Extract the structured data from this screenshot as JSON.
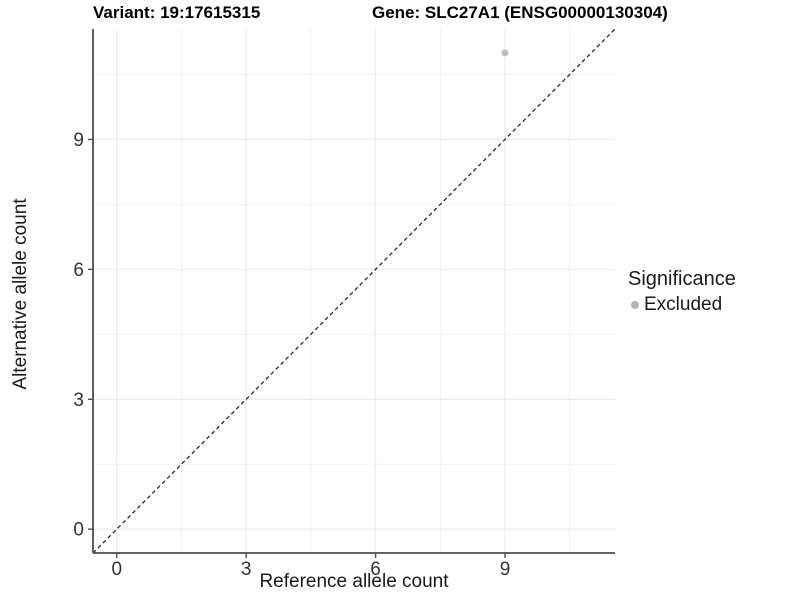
{
  "header": {
    "variant_title": "Variant: 19:17615315",
    "gene_title": "Gene: SLC27A1 (ENSG00000130304)"
  },
  "chart_data": {
    "type": "scatter",
    "title": "Variant: 19:17615315    Gene: SLC27A1 (ENSG00000130304)",
    "xlabel": "Reference allele count",
    "ylabel": "Alternative allele count",
    "xlim": [
      -0.55,
      11.55
    ],
    "ylim": [
      -0.55,
      11.55
    ],
    "x_major_ticks": [
      0,
      3,
      6,
      9
    ],
    "y_major_ticks": [
      0,
      3,
      6,
      9
    ],
    "x_minor_gridlines": [
      1.5,
      4.5,
      7.5,
      10.5
    ],
    "y_minor_gridlines": [
      1.5,
      4.5,
      7.5,
      10.5
    ],
    "grid": true,
    "points": [
      {
        "x": 9,
        "y": 11,
        "significance": "Excluded",
        "color": "#bdbdbd",
        "radius": 3.5
      }
    ],
    "reference_line": {
      "slope": 1,
      "intercept": 0,
      "style": "dashed",
      "color": "#1a1a1a",
      "dash": "4 3"
    },
    "legend": {
      "title": "Significance",
      "position": "right",
      "items": [
        {
          "label": "Excluded",
          "color": "#b3b3b3"
        }
      ]
    },
    "colors": {
      "panel_background": "#ffffff",
      "major_gridline": "#e9e9e9",
      "minor_gridline": "#ededed",
      "axis_line": "#4d4d4d",
      "tick_label": "#333333",
      "title_text": "#000000"
    }
  }
}
